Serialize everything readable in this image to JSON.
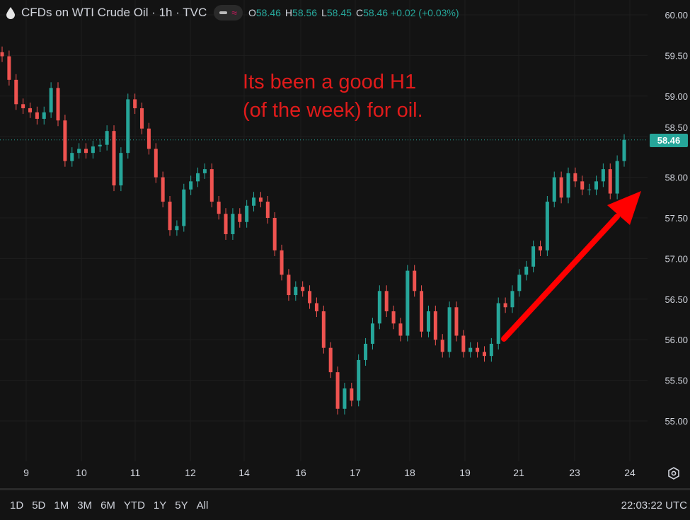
{
  "header": {
    "icon": "oil-drop-icon",
    "title": "CFDs on WTI Crude Oil · 1h · TVC",
    "ohlc": [
      {
        "k": "O",
        "v": "58.46"
      },
      {
        "k": "H",
        "v": "58.56"
      },
      {
        "k": "L",
        "v": "58.45"
      },
      {
        "k": "C",
        "v": "58.46 +0.02 (+0.03%)"
      }
    ]
  },
  "annotation": {
    "line1": "Its been a good H1",
    "line2": "(of the week) for oil.",
    "color": "#e01b1b"
  },
  "colors": {
    "up": "#26a69a",
    "down": "#ef5350",
    "background": "#131313",
    "arrow": "#ff0000"
  },
  "chart_data": {
    "type": "candlestick",
    "interval": "1h",
    "ylim": [
      54.6,
      60.1
    ],
    "y_ticks": [
      "60.00",
      "59.50",
      "59.00",
      "58.50",
      "58.00",
      "57.50",
      "57.00",
      "56.50",
      "56.00",
      "55.50",
      "55.00"
    ],
    "x_ticks": [
      "9",
      "10",
      "11",
      "12",
      "14",
      "16",
      "17",
      "18",
      "19",
      "21",
      "23",
      "24"
    ],
    "last_price": "58.46",
    "closes": [
      59.49,
      59.2,
      58.9,
      58.85,
      58.8,
      58.72,
      58.8,
      59.1,
      58.7,
      58.2,
      58.3,
      58.35,
      58.3,
      58.38,
      58.4,
      58.57,
      57.9,
      58.3,
      58.96,
      58.85,
      58.6,
      58.35,
      58.0,
      57.7,
      57.35,
      57.4,
      57.85,
      57.95,
      58.05,
      58.1,
      57.7,
      57.55,
      57.3,
      57.55,
      57.45,
      57.65,
      57.75,
      57.7,
      57.5,
      57.1,
      56.8,
      56.55,
      56.65,
      56.6,
      56.45,
      56.35,
      55.9,
      55.6,
      55.15,
      55.4,
      55.25,
      55.75,
      55.95,
      56.2,
      56.6,
      56.35,
      56.2,
      56.05,
      56.85,
      56.6,
      56.1,
      56.35,
      56.0,
      55.85,
      56.4,
      56.05,
      55.85,
      55.9,
      55.85,
      55.8,
      55.95,
      56.45,
      56.4,
      56.6,
      56.8,
      56.9,
      57.15,
      57.1,
      57.7,
      58.0,
      57.75,
      58.05,
      57.95,
      57.85,
      57.85,
      57.95,
      58.1,
      57.8,
      58.2,
      58.46
    ],
    "grid": true
  },
  "bottom": {
    "ranges": [
      "1D",
      "5D",
      "1M",
      "3M",
      "6M",
      "YTD",
      "1Y",
      "5Y",
      "All"
    ],
    "clock": "22:03:22 UTC"
  }
}
